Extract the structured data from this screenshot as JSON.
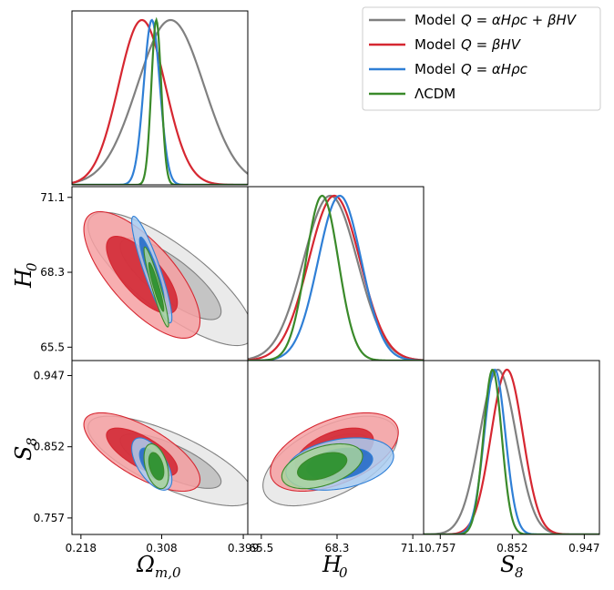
{
  "chart_data": {
    "type": "corner",
    "parameters": [
      {
        "id": "om",
        "label": "Ω",
        "subscript": "m,0",
        "ticks": [
          0.218,
          0.308,
          0.399
        ],
        "tick_labels": [
          "0.218",
          "0.308",
          "0.399"
        ],
        "range": [
          0.208,
          0.404
        ]
      },
      {
        "id": "h0",
        "label": "H",
        "subscript": "0",
        "ticks": [
          65.5,
          68.3,
          71.1
        ],
        "tick_labels": [
          "65.5",
          "68.3",
          "71.1"
        ],
        "range": [
          65.0,
          71.5
        ]
      },
      {
        "id": "s8",
        "label": "S",
        "subscript": "8",
        "ticks": [
          0.757,
          0.852,
          0.947
        ],
        "tick_labels": [
          "0.757",
          "0.852",
          "0.947"
        ],
        "range": [
          0.735,
          0.967
        ]
      }
    ],
    "series": [
      {
        "name": "Model Q = αHρc + βHV",
        "color": "#808080",
        "fill_outer": "#e6e6e6",
        "fill_inner": "#bdbdbd",
        "mean": {
          "om": 0.318,
          "h0": 68.05,
          "s8": 0.833
        },
        "sigma": {
          "om": 0.037,
          "h0": 1.0,
          "s8": 0.024
        },
        "corr": {
          "h0_om": -0.8,
          "s8_om": -0.75,
          "s8_h0": 0.55
        }
      },
      {
        "name": "Model Q = βHV",
        "color": "#d62731",
        "fill_outer": "#f6a0a2",
        "fill_inner": "#d0222f",
        "mean": {
          "om": 0.286,
          "h0": 68.2,
          "s8": 0.845
        },
        "sigma": {
          "om": 0.026,
          "h0": 0.95,
          "s8": 0.021
        },
        "corr": {
          "h0_om": -0.72,
          "s8_om": -0.7,
          "s8_h0": 0.5
        }
      },
      {
        "name": "Model Q = αHρc",
        "color": "#2f7fd6",
        "fill_outer": "#a9cdf2",
        "fill_inner": "#1f66c6",
        "mean": {
          "om": 0.297,
          "h0": 68.4,
          "s8": 0.829
        },
        "sigma": {
          "om": 0.009,
          "h0": 0.8,
          "s8": 0.014
        },
        "corr": {
          "h0_om": -0.9,
          "s8_om": -0.6,
          "s8_h0": 0.3
        }
      },
      {
        "name": "ΛCDM",
        "color": "#3a8a2a",
        "fill_outer": "#a8d49c",
        "fill_inner": "#228b22",
        "mean": {
          "om": 0.302,
          "h0": 67.75,
          "s8": 0.826
        },
        "sigma": {
          "om": 0.0055,
          "h0": 0.6,
          "s8": 0.012
        },
        "corr": {
          "h0_om": -0.93,
          "s8_om": -0.4,
          "s8_h0": 0.45
        }
      }
    ],
    "legend": {
      "placement": "top-right",
      "entries": [
        {
          "plain": "Model",
          "math": "Q = αHρc + βHV"
        },
        {
          "plain": "Model",
          "math": "Q = βHV"
        },
        {
          "plain": "Model",
          "math": "Q = αHρc"
        },
        {
          "plain": "",
          "math": "ΛCDM"
        }
      ]
    }
  }
}
